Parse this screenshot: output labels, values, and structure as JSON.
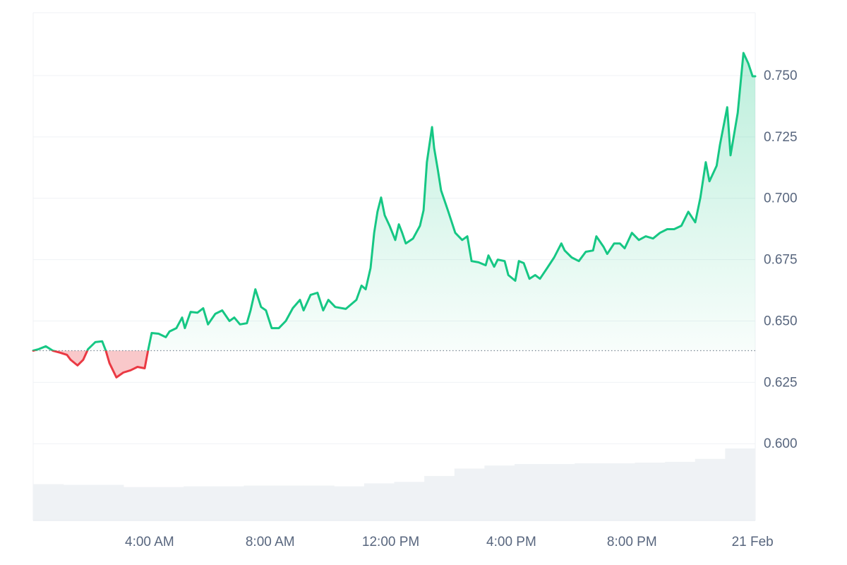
{
  "chart_data": {
    "type": "line",
    "x": [
      0.14,
      0.32,
      0.56,
      0.79,
      1.03,
      1.26,
      1.38,
      1.61,
      1.8,
      1.96,
      2.2,
      2.43,
      2.55,
      2.67,
      2.9,
      3.13,
      3.37,
      3.6,
      3.84,
      3.95,
      4.07,
      4.3,
      4.54,
      4.66,
      4.89,
      5.08,
      5.17,
      5.36,
      5.59,
      5.78,
      5.94,
      6.18,
      6.41,
      6.65,
      6.81,
      7.0,
      7.23,
      7.35,
      7.51,
      7.7,
      7.86,
      8.05,
      8.29,
      8.52,
      8.75,
      8.99,
      9.11,
      9.34,
      9.57,
      9.76,
      9.93,
      10.16,
      10.51,
      10.86,
      11.03,
      11.17,
      11.33,
      11.45,
      11.56,
      11.68,
      11.8,
      11.96,
      12.15,
      12.27,
      12.38,
      12.5,
      12.74,
      12.97,
      13.09,
      13.2,
      13.37,
      13.44,
      13.56,
      13.67,
      13.91,
      14.14,
      14.37,
      14.54,
      14.68,
      14.91,
      15.15,
      15.24,
      15.43,
      15.55,
      15.78,
      15.9,
      16.13,
      16.25,
      16.41,
      16.6,
      16.79,
      16.95,
      17.19,
      17.42,
      17.66,
      17.77,
      18.0,
      18.24,
      18.47,
      18.71,
      18.82,
      19.06,
      19.18,
      19.41,
      19.6,
      19.76,
      20.0,
      20.23,
      20.46,
      20.7,
      20.93,
      21.17,
      21.4,
      21.64,
      21.87,
      22.1,
      22.27,
      22.45,
      22.57,
      22.81,
      22.92,
      23.16,
      23.27,
      23.51,
      23.7,
      23.86,
      24.0,
      24.09
    ],
    "values": [
      0.6379,
      0.6385,
      0.6397,
      0.6379,
      0.6371,
      0.6362,
      0.6342,
      0.6319,
      0.6342,
      0.6385,
      0.6414,
      0.6417,
      0.6379,
      0.6328,
      0.627,
      0.629,
      0.6299,
      0.6313,
      0.6307,
      0.6379,
      0.6451,
      0.6448,
      0.6434,
      0.6457,
      0.6471,
      0.6514,
      0.6471,
      0.6537,
      0.6534,
      0.6552,
      0.6486,
      0.6529,
      0.6543,
      0.65,
      0.6514,
      0.6486,
      0.6491,
      0.6543,
      0.6629,
      0.6557,
      0.6543,
      0.6471,
      0.6471,
      0.65,
      0.6552,
      0.6586,
      0.6543,
      0.6606,
      0.6615,
      0.6543,
      0.6586,
      0.6557,
      0.6549,
      0.6586,
      0.6644,
      0.6629,
      0.6716,
      0.6859,
      0.6945,
      0.7003,
      0.6931,
      0.6888,
      0.683,
      0.6894,
      0.6859,
      0.6816,
      0.6836,
      0.6888,
      0.6951,
      0.7147,
      0.729,
      0.7204,
      0.7118,
      0.7032,
      0.6945,
      0.6859,
      0.683,
      0.6845,
      0.6744,
      0.6739,
      0.6727,
      0.6767,
      0.6721,
      0.675,
      0.6744,
      0.6687,
      0.6664,
      0.6744,
      0.6736,
      0.6672,
      0.6687,
      0.6672,
      0.6716,
      0.6759,
      0.6816,
      0.6787,
      0.6759,
      0.6744,
      0.6782,
      0.6787,
      0.6845,
      0.6802,
      0.6773,
      0.6816,
      0.6816,
      0.6796,
      0.6859,
      0.683,
      0.6845,
      0.6836,
      0.6859,
      0.6874,
      0.6874,
      0.6888,
      0.6945,
      0.6902,
      0.7003,
      0.7147,
      0.7069,
      0.7132,
      0.7218,
      0.7371,
      0.7175,
      0.7348,
      0.7592,
      0.7549,
      0.7497,
      0.7497
    ],
    "color": "#16c784",
    "negative_color": "#ea3943",
    "baseline": 0.6379,
    "volume": {
      "color": "#eff2f5",
      "values": [
        49,
        48,
        48,
        45,
        45,
        46,
        46,
        47,
        47,
        47,
        46,
        50,
        52,
        60,
        70,
        74,
        76,
        76,
        77,
        77,
        78,
        79,
        83,
        97
      ]
    },
    "xlim": [
      0.14,
      24.09
    ],
    "xticks": [
      {
        "value": 4,
        "label": "4:00 AM"
      },
      {
        "value": 8,
        "label": "8:00 AM"
      },
      {
        "value": 12,
        "label": "12:00 PM"
      },
      {
        "value": 16,
        "label": "4:00 PM"
      },
      {
        "value": 20,
        "label": "8:00 PM"
      },
      {
        "value": 24,
        "label": "21 Feb"
      }
    ],
    "ylim": [
      0.5687,
      0.7756
    ],
    "yticks": [
      {
        "value": 0.6,
        "label": "0.600"
      },
      0.625,
      {
        "value": 0.65,
        "label": "0.650"
      },
      0.675,
      {
        "value": 0.7,
        "label": "0.700"
      },
      0.725,
      {
        "value": 0.75,
        "label": "0.750"
      }
    ],
    "grid": true
  }
}
